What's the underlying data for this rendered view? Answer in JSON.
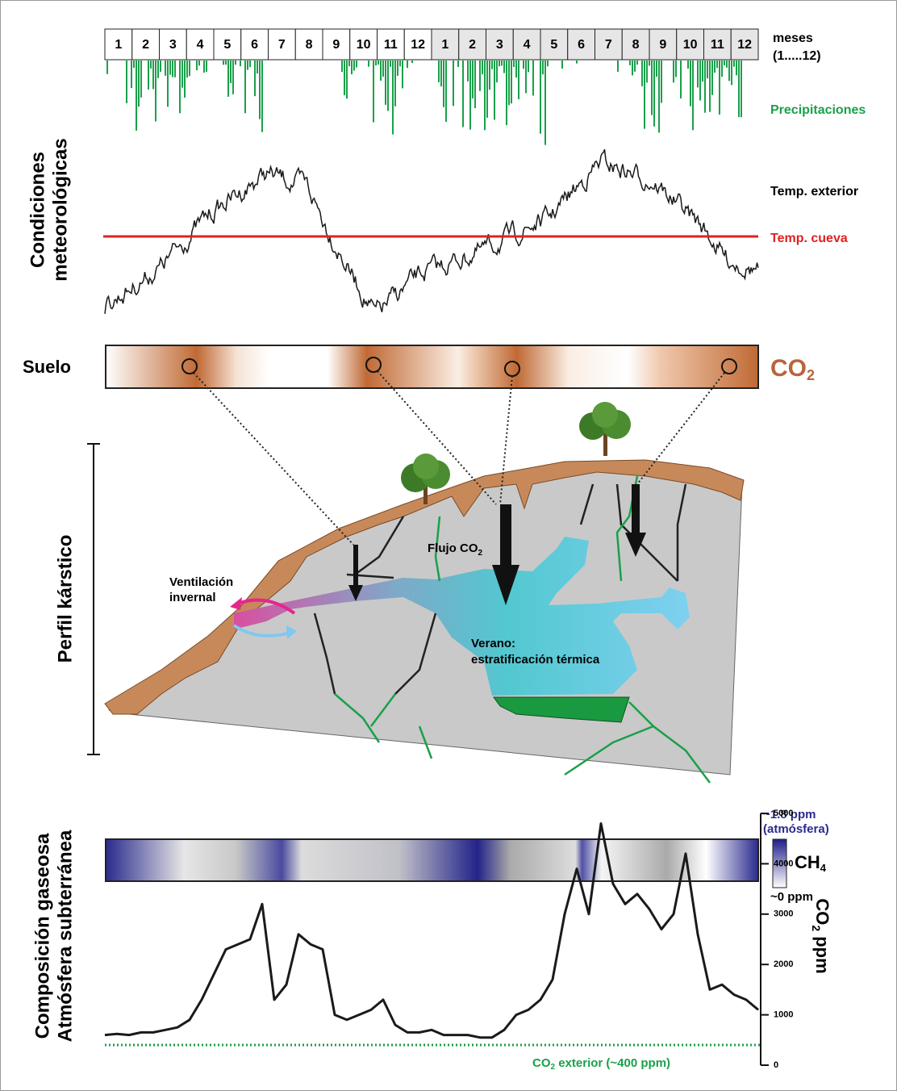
{
  "months": {
    "labels": [
      "1",
      "2",
      "3",
      "4",
      "5",
      "6",
      "7",
      "8",
      "9",
      "10",
      "11",
      "12",
      "1",
      "2",
      "3",
      "4",
      "5",
      "6",
      "7",
      "8",
      "9",
      "10",
      "11",
      "12"
    ],
    "caption": [
      "meses",
      "(1.....12)"
    ]
  },
  "meteo": {
    "side_label": [
      "Condiciones",
      "meteorológicas"
    ],
    "precipitation_label": "Precipitaciones",
    "temp_exterior_label": "Temp. exterior",
    "temp_cueva_label": "Temp. cueva"
  },
  "soil": {
    "label": "Suelo",
    "co2_label": "CO",
    "co2_sub": "2"
  },
  "profile": {
    "side_label": "Perfil kárstico",
    "ventilation": [
      "Ventilación",
      "invernal"
    ],
    "flux": "Flujo CO",
    "flux_sub": "2",
    "summer": [
      "Verano:",
      "estratificación térmica"
    ]
  },
  "gas": {
    "side_label": [
      "Composición gaseosa",
      "Atmósfera subterránea"
    ],
    "ch4_top": [
      "~1.8 ppm",
      "(atmósfera)"
    ],
    "ch4_label": "CH",
    "ch4_sub": "4",
    "ch4_bottom": "~0 ppm"
  },
  "chart_data": {
    "type": "line",
    "y_label": [
      "CO",
      "2",
      " ppm"
    ],
    "ylim": [
      0,
      5000
    ],
    "yticks": [
      0,
      1000,
      2000,
      3000,
      4000,
      5000
    ],
    "series": [
      {
        "color": "#1a1a1a",
        "values": [
          600,
          620,
          600,
          650,
          650,
          700,
          750,
          900,
          1300,
          1800,
          2300,
          2400,
          2500,
          3200,
          1300,
          1600,
          2600,
          2400,
          2300,
          1000,
          900,
          1000,
          1100,
          1300,
          800,
          650,
          650,
          700,
          600,
          600,
          600,
          550,
          550,
          700,
          1000,
          1100,
          1300,
          1700,
          3000,
          3900,
          3000,
          4800,
          3600,
          3200,
          3400,
          3100,
          2700,
          3000,
          4200,
          2600,
          1500,
          1600,
          1400,
          1300,
          1100
        ]
      }
    ],
    "exterior": {
      "value": 400,
      "color": "#1aa04a",
      "label": [
        "CO",
        "2",
        " exterior (~400 ppm)"
      ]
    }
  }
}
